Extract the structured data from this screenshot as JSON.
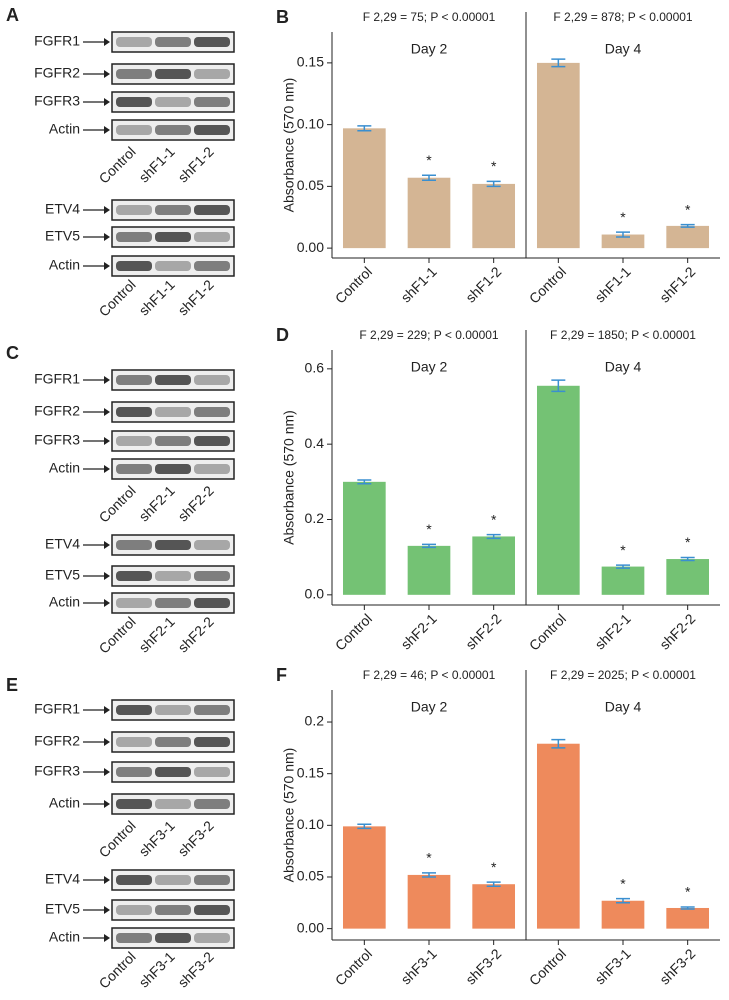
{
  "blots": [
    {
      "panel_label": "A",
      "groups": [
        {
          "rows": [
            {
              "label": "FGFR1",
              "highlight": true
            },
            {
              "label": "FGFR2",
              "highlight": false
            },
            {
              "label": "FGFR3",
              "highlight": false
            },
            {
              "label": "Actin",
              "highlight": false
            }
          ],
          "lanes": [
            "Control",
            "shF1-1",
            "shF1-2"
          ]
        },
        {
          "rows": [
            {
              "label": "ETV4",
              "highlight": false
            },
            {
              "label": "ETV5",
              "highlight": false
            },
            {
              "label": "Actin",
              "highlight": false
            }
          ],
          "lanes": [
            "Control",
            "shF1-1",
            "shF1-2"
          ]
        }
      ]
    },
    {
      "panel_label": "C",
      "groups": [
        {
          "rows": [
            {
              "label": "FGFR1",
              "highlight": false
            },
            {
              "label": "FGFR2",
              "highlight": true
            },
            {
              "label": "FGFR3",
              "highlight": false
            },
            {
              "label": "Actin",
              "highlight": false
            }
          ],
          "lanes": [
            "Control",
            "shF2-1",
            "shF2-2"
          ]
        },
        {
          "rows": [
            {
              "label": "ETV4",
              "highlight": false
            },
            {
              "label": "ETV5",
              "highlight": false
            },
            {
              "label": "Actin",
              "highlight": false
            }
          ],
          "lanes": [
            "Control",
            "shF2-1",
            "shF2-2"
          ]
        }
      ]
    },
    {
      "panel_label": "E",
      "groups": [
        {
          "rows": [
            {
              "label": "FGFR1",
              "highlight": false
            },
            {
              "label": "FGFR2",
              "highlight": false
            },
            {
              "label": "FGFR3",
              "highlight": true
            },
            {
              "label": "Actin",
              "highlight": false
            }
          ],
          "lanes": [
            "Control",
            "shF3-1",
            "shF3-2"
          ]
        },
        {
          "rows": [
            {
              "label": "ETV4",
              "highlight": false
            },
            {
              "label": "ETV5",
              "highlight": false
            },
            {
              "label": "Actin",
              "highlight": false
            }
          ],
          "lanes": [
            "Control",
            "shF3-1",
            "shF3-2"
          ]
        }
      ]
    }
  ],
  "chart_data": [
    {
      "type": "bar",
      "panel_label": "B",
      "y_label": "Absorbance (570 nm)",
      "groups": [
        "Day 2",
        "Day 4"
      ],
      "stats": [
        "F 2,29 = 75; P < 0.00001",
        "F 2,29 = 878; P < 0.00001"
      ],
      "categories": [
        "Control",
        "shF1-1",
        "shF1-2",
        "Control",
        "shF1-1",
        "shF1-2"
      ],
      "values": [
        0.097,
        0.057,
        0.052,
        0.15,
        0.011,
        0.018
      ],
      "errors": [
        0.002,
        0.002,
        0.002,
        0.003,
        0.002,
        0.001
      ],
      "annotations": [
        null,
        "*",
        "*",
        null,
        "*",
        "*"
      ],
      "color": "#d4b594",
      "ylim": [
        -0.008,
        0.175
      ],
      "yticks": [
        {
          "value": 0,
          "label": "0.00"
        },
        {
          "value": 0.05,
          "label": "0.05"
        },
        {
          "value": 0.1,
          "label": "0.10"
        },
        {
          "value": 0.15,
          "label": "0.15"
        }
      ]
    },
    {
      "type": "bar",
      "panel_label": "D",
      "y_label": "Absorbance (570 nm)",
      "groups": [
        "Day 2",
        "Day 4"
      ],
      "stats": [
        "F 2,29 = 229; P < 0.00001",
        "F 2,29 = 1850; P < 0.00001"
      ],
      "categories": [
        "Control",
        "shF2-1",
        "shF2-2",
        "Control",
        "shF2-1",
        "shF2-2"
      ],
      "values": [
        0.3,
        0.13,
        0.155,
        0.555,
        0.075,
        0.095
      ],
      "errors": [
        0.005,
        0.004,
        0.005,
        0.015,
        0.004,
        0.004
      ],
      "annotations": [
        null,
        "*",
        "*",
        null,
        "*",
        "*"
      ],
      "color": "#74c274",
      "ylim": [
        -0.027,
        0.65
      ],
      "yticks": [
        {
          "value": 0,
          "label": "0.0"
        },
        0.2,
        0.4,
        0.6
      ]
    },
    {
      "type": "bar",
      "panel_label": "F",
      "y_label": "Absorbance (570 nm)",
      "groups": [
        "Day 2",
        "Day 4"
      ],
      "stats": [
        "F 2,29 = 46; P < 0.00001",
        "F 2,29 = 2025; P < 0.00001"
      ],
      "categories": [
        "Control",
        "shF3-1",
        "shF3-2",
        "Control",
        "shF3-1",
        "shF3-2"
      ],
      "values": [
        0.099,
        0.052,
        0.043,
        0.179,
        0.027,
        0.02
      ],
      "errors": [
        0.002,
        0.002,
        0.002,
        0.004,
        0.002,
        0.001
      ],
      "annotations": [
        null,
        "*",
        "*",
        null,
        "*",
        "*"
      ],
      "color": "#ee8a5c",
      "ylim": [
        -0.011,
        0.231
      ],
      "yticks": [
        {
          "value": 0,
          "label": "0.00"
        },
        {
          "value": 0.05,
          "label": "0.05"
        },
        {
          "value": 0.1,
          "label": "0.10"
        },
        {
          "value": 0.15,
          "label": "0.15"
        },
        0.2
      ]
    }
  ]
}
